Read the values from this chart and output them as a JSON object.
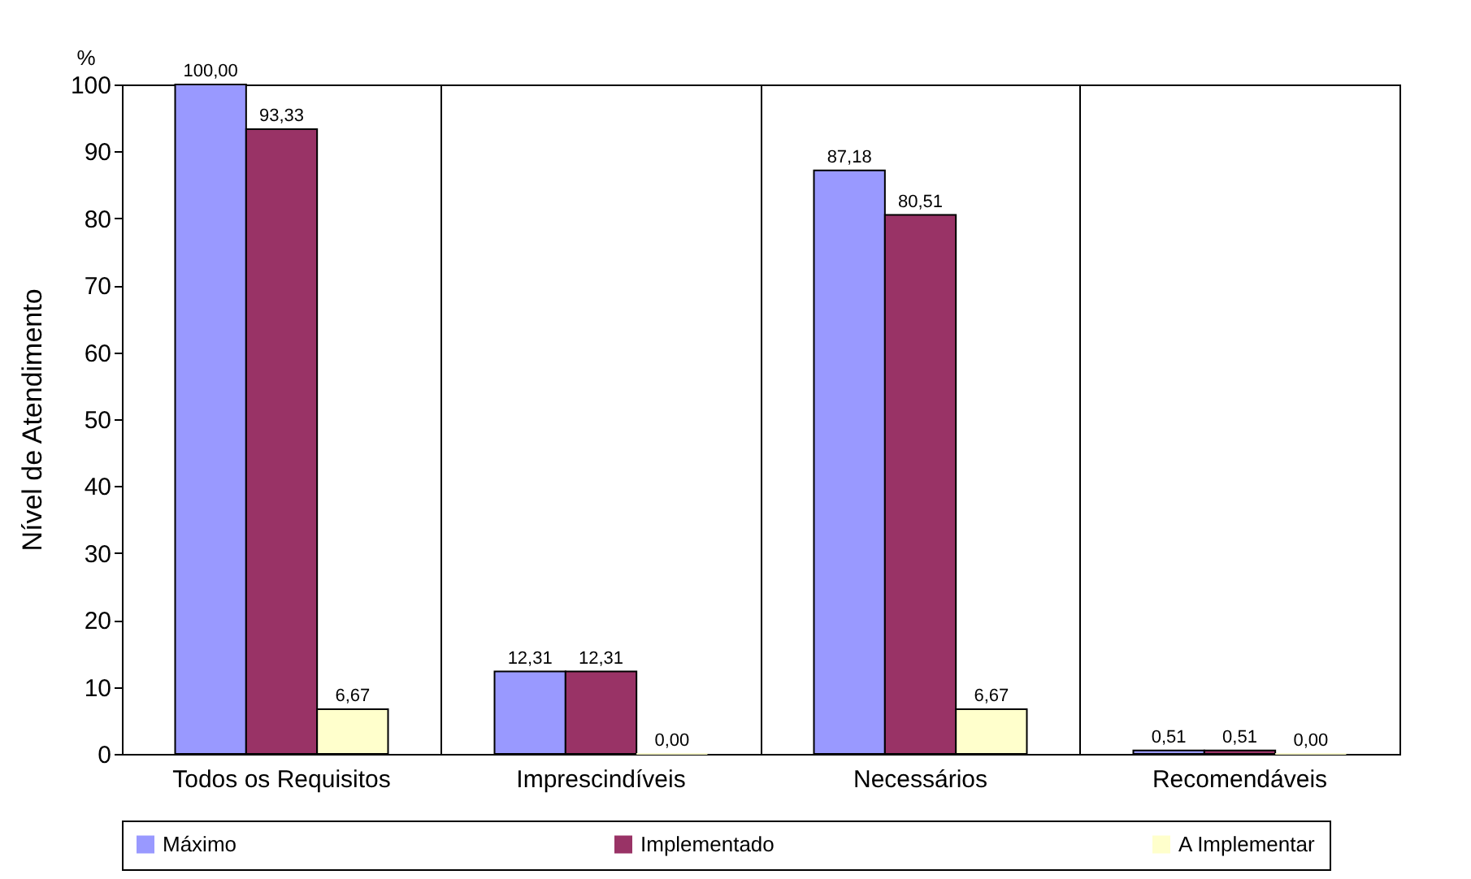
{
  "chart_data": {
    "type": "bar",
    "ylabel": "Nível de Atendimento",
    "annotations": [
      "%"
    ],
    "categories": [
      "Todos os Requisitos",
      "Imprescindíveis",
      "Necessários",
      "Recomendáveis"
    ],
    "series": [
      {
        "name": "Máximo",
        "color": "#9999ff",
        "values": [
          100.0,
          12.31,
          87.18,
          0.51
        ],
        "value_labels": [
          "100,00",
          "12,31",
          "87,18",
          "0,51"
        ]
      },
      {
        "name": "Implementado",
        "color": "#993366",
        "values": [
          93.33,
          12.31,
          80.51,
          0.51
        ],
        "value_labels": [
          "93,33",
          "12,31",
          "80,51",
          "0,51"
        ]
      },
      {
        "name": "A Implementar",
        "color": "#ffffcc",
        "values": [
          6.67,
          0.0,
          6.67,
          0.0
        ],
        "value_labels": [
          "6,67",
          "0,00",
          "6,67",
          "0,00"
        ]
      }
    ],
    "ylim": [
      0,
      100
    ],
    "yticks": [
      0,
      10,
      20,
      30,
      40,
      50,
      60,
      70,
      80,
      90,
      100
    ],
    "grid": "x",
    "legend": "bottom"
  }
}
